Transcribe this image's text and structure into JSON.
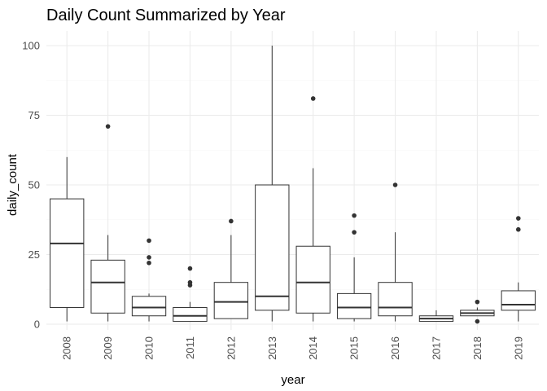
{
  "chart_data": {
    "type": "boxplot",
    "title": "Daily Count Summarized by Year",
    "xlabel": "year",
    "ylabel": "daily_count",
    "ylim": [
      -2,
      104
    ],
    "yticks": [
      0,
      25,
      50,
      75,
      100
    ],
    "grid": true,
    "categories": [
      "2008",
      "2009",
      "2010",
      "2011",
      "2012",
      "2013",
      "2014",
      "2015",
      "2016",
      "2017",
      "2018",
      "2019"
    ],
    "boxes": [
      {
        "category": "2008",
        "min": 1,
        "q1": 6,
        "median": 29,
        "q3": 45,
        "max": 60,
        "outliers": []
      },
      {
        "category": "2009",
        "min": 1,
        "q1": 4,
        "median": 15,
        "q3": 23,
        "max": 32,
        "outliers": [
          71
        ]
      },
      {
        "category": "2010",
        "min": 1,
        "q1": 3,
        "median": 6,
        "q3": 10,
        "max": 11,
        "outliers": [
          22,
          24,
          30
        ]
      },
      {
        "category": "2011",
        "min": 1,
        "q1": 1,
        "median": 3,
        "q3": 6,
        "max": 8,
        "outliers": [
          14,
          15,
          20
        ]
      },
      {
        "category": "2012",
        "min": 2,
        "q1": 2,
        "median": 8,
        "q3": 15,
        "max": 32,
        "outliers": [
          37
        ]
      },
      {
        "category": "2013",
        "min": 1,
        "q1": 5,
        "median": 10,
        "q3": 50,
        "max": 100,
        "outliers": []
      },
      {
        "category": "2014",
        "min": 1,
        "q1": 4,
        "median": 15,
        "q3": 28,
        "max": 56,
        "outliers": [
          81
        ]
      },
      {
        "category": "2015",
        "min": 1,
        "q1": 2,
        "median": 6,
        "q3": 11,
        "max": 24,
        "outliers": [
          33,
          39
        ]
      },
      {
        "category": "2016",
        "min": 1,
        "q1": 3,
        "median": 6,
        "q3": 15,
        "max": 33,
        "outliers": [
          50
        ]
      },
      {
        "category": "2017",
        "min": 1,
        "q1": 1,
        "median": 2,
        "q3": 3,
        "max": 5,
        "outliers": []
      },
      {
        "category": "2018",
        "min": 3,
        "q1": 3,
        "median": 4,
        "q3": 5,
        "max": 6,
        "outliers": [
          1,
          8
        ]
      },
      {
        "category": "2019",
        "min": 1,
        "q1": 5,
        "median": 7,
        "q3": 12,
        "max": 15,
        "outliers": [
          34,
          38
        ]
      }
    ]
  }
}
